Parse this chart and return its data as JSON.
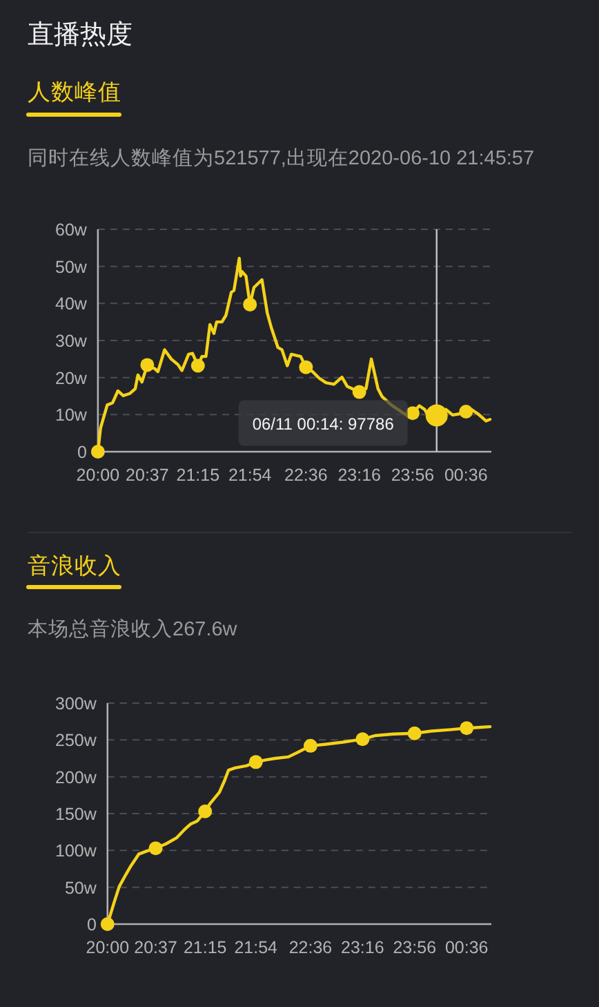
{
  "chart_data": [
    {
      "type": "line",
      "title": "人数峰值",
      "subtitle": "同时在线人数峰值为521577,出现在2020-06-10 21:45:57",
      "annotations": [
        "直播热度",
        {
          "text": "06/11 00:14: 97786",
          "x": "2020-06-11T00:14",
          "y": 9.7786
        }
      ],
      "series": [
        {
          "color": "#f5d21a",
          "x": [
            "2020-06-10T20:00",
            "2020-06-10T20:02",
            "2020-06-10T20:07",
            "2020-06-10T20:11",
            "2020-06-10T20:15",
            "2020-06-10T20:19",
            "2020-06-10T20:24",
            "2020-06-10T20:28",
            "2020-06-10T20:30",
            "2020-06-10T20:33",
            "2020-06-10T20:37",
            "2020-06-10T20:43",
            "2020-06-10T20:45",
            "2020-06-10T20:50",
            "2020-06-10T20:55",
            "2020-06-10T21:00",
            "2020-06-10T21:03",
            "2020-06-10T21:08",
            "2020-06-10T21:11",
            "2020-06-10T21:15",
            "2020-06-10T21:18",
            "2020-06-10T21:21",
            "2020-06-10T21:24",
            "2020-06-10T21:27",
            "2020-06-10T21:29",
            "2020-06-10T21:33",
            "2020-06-10T21:36",
            "2020-06-10T21:40",
            "2020-06-10T21:42",
            "2020-06-10T21:46",
            "2020-06-10T21:47",
            "2020-06-10T21:48",
            "2020-06-10T21:51",
            "2020-06-10T21:54",
            "2020-06-10T21:57",
            "2020-06-10T22:03",
            "2020-06-10T22:07",
            "2020-06-10T22:10",
            "2020-06-10T22:15",
            "2020-06-10T22:18",
            "2020-06-10T22:22",
            "2020-06-10T22:25",
            "2020-06-10T22:32",
            "2020-06-10T22:36",
            "2020-06-10T22:41",
            "2020-06-10T22:46",
            "2020-06-10T22:51",
            "2020-06-10T22:57",
            "2020-06-10T23:03",
            "2020-06-10T23:07",
            "2020-06-10T23:16",
            "2020-06-10T23:21",
            "2020-06-10T23:25",
            "2020-06-10T23:30",
            "2020-06-10T23:33",
            "2020-06-10T23:40",
            "2020-06-10T23:49",
            "2020-06-10T23:53",
            "2020-06-10T23:56",
            "2020-06-11T00:01",
            "2020-06-11T00:05",
            "2020-06-11T00:08",
            "2020-06-11T00:14",
            "2020-06-11T00:21",
            "2020-06-11T00:26",
            "2020-06-11T00:31",
            "2020-06-11T00:36",
            "2020-06-11T00:40",
            "2020-06-11T00:45",
            "2020-06-11T00:51",
            "2020-06-11T00:54"
          ],
          "values": [
            0,
            6.4,
            12.6,
            13.2,
            16.4,
            15.1,
            15.7,
            17.0,
            20.7,
            18.8,
            23.4,
            22.3,
            21.6,
            27.5,
            25.0,
            23.5,
            21.9,
            26.3,
            26.5,
            23.2,
            25.7,
            25.7,
            34.3,
            31.9,
            35.0,
            35.0,
            36.8,
            43.0,
            43.5,
            52.2,
            47.4,
            48.6,
            47.4,
            39.7,
            44.3,
            46.4,
            37.4,
            33.5,
            28.1,
            27.5,
            23.2,
            26.3,
            25.7,
            22.8,
            21.6,
            19.8,
            18.6,
            18.2,
            20.1,
            17.6,
            16.1,
            17.0,
            25.0,
            17.0,
            14.9,
            12.6,
            10.4,
            9.5,
            10.4,
            12.4,
            11.4,
            9.5,
            9.8,
            11.4,
            9.9,
            10.2,
            10.8,
            11.4,
            10.2,
            8.3,
            8.7
          ]
        },
        {
          "type": "scatter",
          "color": "#f5d21a",
          "x": [
            "2020-06-10T20:00",
            "2020-06-10T20:37",
            "2020-06-10T21:15",
            "2020-06-10T21:54",
            "2020-06-10T22:36",
            "2020-06-10T23:16",
            "2020-06-10T23:56",
            "2020-06-11T00:36"
          ],
          "values": [
            0,
            23.4,
            23.2,
            39.7,
            22.8,
            16.1,
            10.4,
            10.8
          ]
        }
      ],
      "xlim": [
        "2020-06-10T20:00",
        "2020-06-11T00:55"
      ],
      "xticks": [
        {
          "value": "2020-06-10T20:00",
          "label": "20:00"
        },
        {
          "value": "2020-06-10T20:37",
          "label": "20:37"
        },
        {
          "value": "2020-06-10T21:15",
          "label": "21:15"
        },
        {
          "value": "2020-06-10T21:54",
          "label": "21:54"
        },
        {
          "value": "2020-06-10T22:36",
          "label": "22:36"
        },
        {
          "value": "2020-06-10T23:16",
          "label": "23:16"
        },
        {
          "value": "2020-06-10T23:56",
          "label": "23:56"
        },
        {
          "value": "2020-06-11T00:36",
          "label": "00:36"
        }
      ],
      "ylim": [
        0,
        60
      ],
      "yticks": [
        0,
        {
          "value": 10,
          "label": "10w"
        },
        {
          "value": 20,
          "label": "20w"
        },
        {
          "value": 30,
          "label": "30w"
        },
        {
          "value": 40,
          "label": "40w"
        },
        {
          "value": 50,
          "label": "50w"
        },
        {
          "value": 60,
          "label": "60w"
        }
      ],
      "ref_lines": [
        {
          "axis": "x",
          "value": "2020-06-11T00:14",
          "color": "#c4c4c4"
        }
      ],
      "grid": "y",
      "line_style": "solid"
    },
    {
      "type": "line",
      "title": "音浪收入",
      "subtitle": "本场总音浪收入267.6w",
      "series": [
        {
          "color": "#f5d21a",
          "x": [
            "2020-06-10T20:00",
            "2020-06-10T20:05",
            "2020-06-10T20:09",
            "2020-06-10T20:14",
            "2020-06-10T20:18",
            "2020-06-10T20:24",
            "2020-06-10T20:30",
            "2020-06-10T20:37",
            "2020-06-10T20:45",
            "2020-06-10T20:53",
            "2020-06-10T20:59",
            "2020-06-10T21:04",
            "2020-06-10T21:09",
            "2020-06-10T21:15",
            "2020-06-10T21:19",
            "2020-06-10T21:26",
            "2020-06-10T21:30",
            "2020-06-10T21:33",
            "2020-06-10T21:38",
            "2020-06-10T21:47",
            "2020-06-10T21:54",
            "2020-06-10T22:02",
            "2020-06-10T22:09",
            "2020-06-10T22:19",
            "2020-06-10T22:26",
            "2020-06-10T22:36",
            "2020-06-10T22:47",
            "2020-06-10T23:01",
            "2020-06-10T23:16",
            "2020-06-10T23:26",
            "2020-06-10T23:40",
            "2020-06-10T23:56",
            "2020-06-11T00:09",
            "2020-06-11T00:24",
            "2020-06-11T00:36",
            "2020-06-11T00:45",
            "2020-06-11T00:54"
          ],
          "values": [
            0,
            29,
            51,
            67,
            79,
            95,
            99,
            103,
            109,
            117,
            128,
            136,
            140,
            153,
            164,
            179,
            195,
            209,
            212,
            215,
            220,
            223,
            225,
            227,
            233,
            242,
            244,
            247,
            251,
            256,
            258,
            259,
            262,
            264,
            266,
            267,
            268
          ]
        },
        {
          "type": "scatter",
          "color": "#f5d21a",
          "x": [
            "2020-06-10T20:00",
            "2020-06-10T20:37",
            "2020-06-10T21:15",
            "2020-06-10T21:54",
            "2020-06-10T22:36",
            "2020-06-10T23:16",
            "2020-06-10T23:56",
            "2020-06-11T00:36"
          ],
          "values": [
            0,
            103,
            153,
            220,
            242,
            251,
            259,
            266
          ]
        }
      ],
      "xlim": [
        "2020-06-10T20:00",
        "2020-06-11T00:55"
      ],
      "xticks": [
        {
          "value": "2020-06-10T20:00",
          "label": "20:00"
        },
        {
          "value": "2020-06-10T20:37",
          "label": "20:37"
        },
        {
          "value": "2020-06-10T21:15",
          "label": "21:15"
        },
        {
          "value": "2020-06-10T21:54",
          "label": "21:54"
        },
        {
          "value": "2020-06-10T22:36",
          "label": "22:36"
        },
        {
          "value": "2020-06-10T23:16",
          "label": "23:16"
        },
        {
          "value": "2020-06-10T23:56",
          "label": "23:56"
        },
        {
          "value": "2020-06-11T00:36",
          "label": "00:36"
        }
      ],
      "ylim": [
        0,
        300
      ],
      "yticks": [
        0,
        {
          "value": 50,
          "label": "50w"
        },
        {
          "value": 100,
          "label": "100w"
        },
        {
          "value": 150,
          "label": "150w"
        },
        {
          "value": 200,
          "label": "200w"
        },
        {
          "value": 250,
          "label": "250w"
        },
        {
          "value": 300,
          "label": "300w"
        }
      ],
      "grid": "y",
      "line_style": "solid"
    }
  ]
}
